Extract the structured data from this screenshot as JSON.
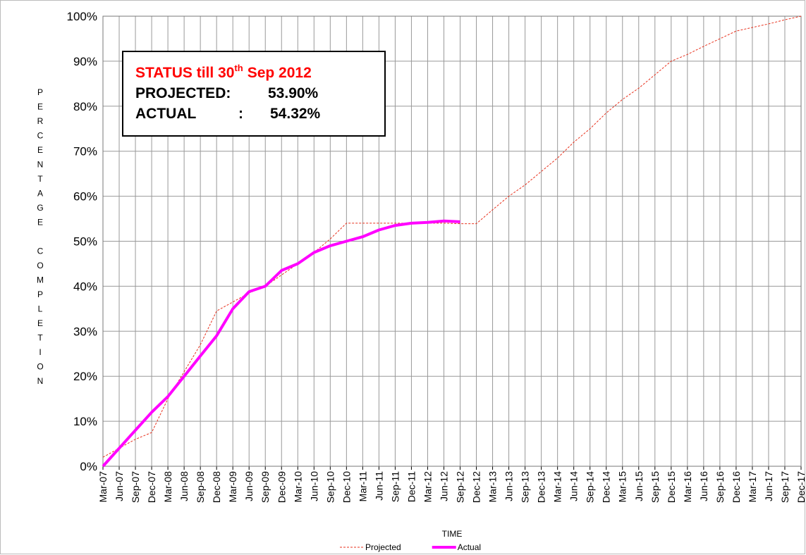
{
  "chart_data": {
    "type": "line",
    "ylabel": "PERCENTAGE COMPLETION",
    "xlabel": "TIME",
    "annotation": {
      "status": "STATUS till 30",
      "status_sup": "th",
      "status_rest": "Sep 2012",
      "projected_label": "PROJECTED:",
      "projected_value": "53.90%",
      "actual_label": "ACTUAL",
      "actual_sep": ":",
      "actual_value": "54.32%"
    },
    "categories": [
      "Mar-07",
      "Jun-07",
      "Sep-07",
      "Dec-07",
      "Mar-08",
      "Jun-08",
      "Sep-08",
      "Dec-08",
      "Mar-09",
      "Jun-09",
      "Sep-09",
      "Dec-09",
      "Mar-10",
      "Jun-10",
      "Sep-10",
      "Dec-10",
      "Mar-11",
      "Jun-11",
      "Sep-11",
      "Dec-11",
      "Mar-12",
      "Jun-12",
      "Sep-12",
      "Dec-12",
      "Mar-13",
      "Jun-13",
      "Sep-13",
      "Dec-13",
      "Mar-14",
      "Jun-14",
      "Sep-14",
      "Dec-14",
      "Mar-15",
      "Jun-15",
      "Sep-15",
      "Dec-15",
      "Mar-16",
      "Jun-16",
      "Sep-16",
      "Dec-16",
      "Mar-17",
      "Jun-17",
      "Sep-17",
      "Dec-17"
    ],
    "series": [
      {
        "name": "Projected",
        "color": "#e8321e",
        "dashed": true,
        "width": 1,
        "values": [
          2,
          4,
          6,
          7.5,
          15,
          21,
          27,
          34.5,
          36.5,
          38.5,
          40,
          42.5,
          45,
          47.5,
          50.5,
          54,
          54,
          54,
          54,
          54,
          54,
          54,
          53.9,
          53.9,
          57,
          60,
          62.5,
          65.5,
          68.5,
          72,
          75,
          78.5,
          81.5,
          84,
          87,
          90,
          91.5,
          93.3,
          95,
          96.7,
          97.5,
          98.3,
          99.2,
          100
        ]
      },
      {
        "name": "Actual",
        "color": "#ff00ff",
        "dashed": false,
        "width": 4,
        "values": [
          0,
          4,
          8,
          12,
          15.5,
          20,
          24.5,
          29,
          35,
          38.8,
          40,
          43.5,
          45,
          47.5,
          49,
          50,
          51,
          52.5,
          53.5,
          54,
          54.2,
          54.5,
          54.32,
          null,
          null,
          null,
          null,
          null,
          null,
          null,
          null,
          null,
          null,
          null,
          null,
          null,
          null,
          null,
          null,
          null,
          null,
          null,
          null,
          null
        ]
      }
    ],
    "ylim": [
      0,
      100
    ],
    "yticks": [
      {
        "value": 0,
        "label": "0%"
      },
      {
        "value": 10,
        "label": "10%"
      },
      {
        "value": 20,
        "label": "20%"
      },
      {
        "value": 30,
        "label": "30%"
      },
      {
        "value": 40,
        "label": "40%"
      },
      {
        "value": 50,
        "label": "50%"
      },
      {
        "value": 60,
        "label": "60%"
      },
      {
        "value": 70,
        "label": "70%"
      },
      {
        "value": 80,
        "label": "80%"
      },
      {
        "value": 90,
        "label": "90%"
      },
      {
        "value": 100,
        "label": "100%"
      }
    ],
    "grid": true,
    "legend": "bottom"
  }
}
